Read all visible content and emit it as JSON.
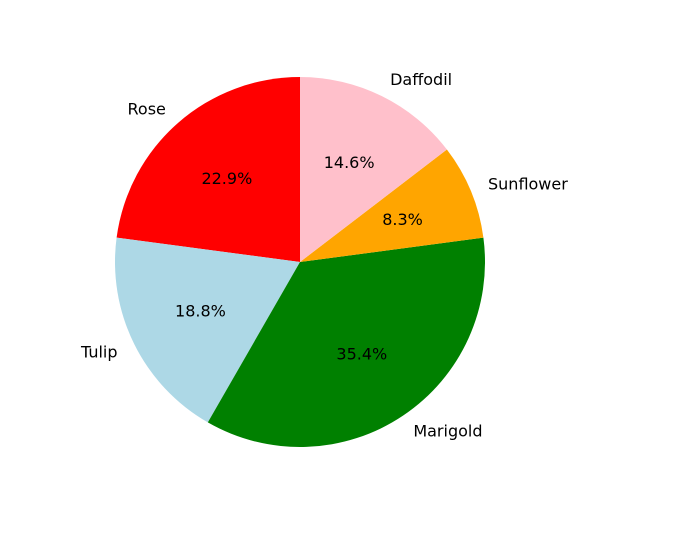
{
  "chart_data": {
    "type": "pie",
    "title": "",
    "start_angle_deg": 90,
    "direction": "counterclockwise",
    "autopct_format": "%.1f%%",
    "legend": "none",
    "slices": [
      {
        "label": "Rose",
        "value": 22.9,
        "pct_label": "22.9%",
        "color": "#ff0000"
      },
      {
        "label": "Tulip",
        "value": 18.8,
        "pct_label": "18.8%",
        "color": "#add8e6"
      },
      {
        "label": "Marigold",
        "value": 35.4,
        "pct_label": "35.4%",
        "color": "#008000"
      },
      {
        "label": "Sunflower",
        "value": 8.3,
        "pct_label": "8.3%",
        "color": "#ffa500"
      },
      {
        "label": "Daffodil",
        "value": 14.6,
        "pct_label": "14.6%",
        "color": "#ffc0cb"
      }
    ]
  }
}
